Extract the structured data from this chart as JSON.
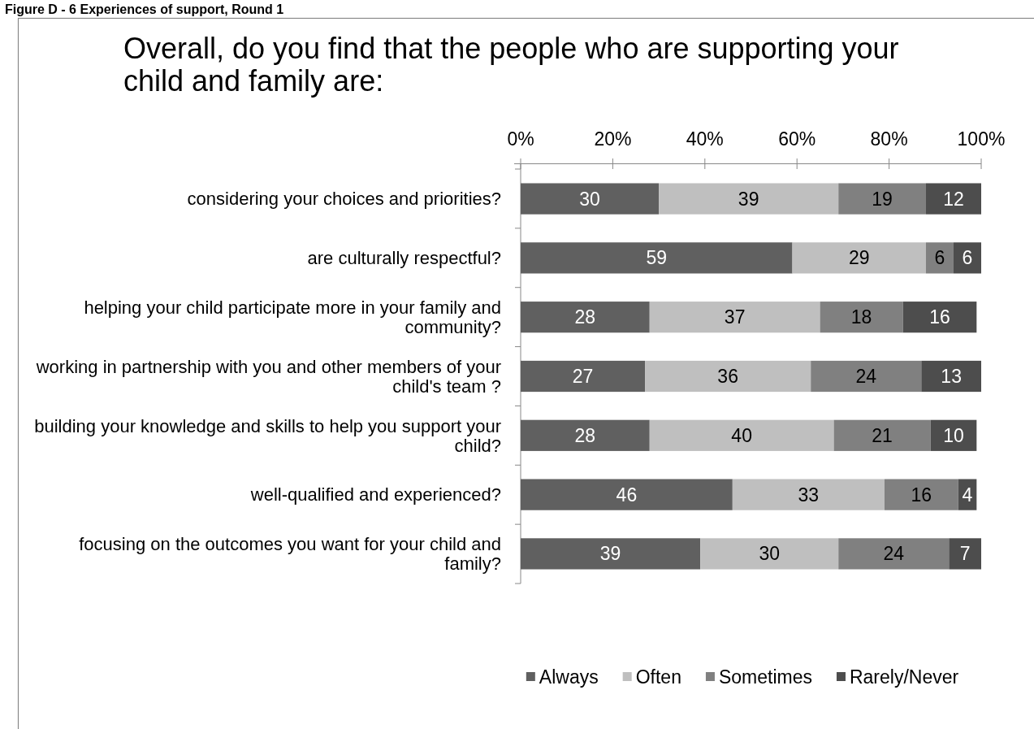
{
  "chart_data": {
    "type": "bar",
    "orientation": "horizontal",
    "stacked": true,
    "title": "Overall, do you find that the people who are supporting your child and family are:",
    "annotations": [
      "Figure D - 6 Experiences of support, Round 1"
    ],
    "categories": [
      "considering your choices and priorities?",
      "are culturally respectful?",
      "helping your child participate more in your family and community?",
      "working in partnership with you and other members of your child's team ?",
      "building your knowledge and skills to help you support your child?",
      "well-qualified and experienced?",
      "focusing on the outcomes you want for your child and family?"
    ],
    "series": [
      {
        "name": "Always",
        "color": "#606060",
        "values": [
          30,
          59,
          28,
          27,
          28,
          46,
          39
        ]
      },
      {
        "name": "Often",
        "color": "#bfbfbf",
        "values": [
          39,
          29,
          37,
          36,
          40,
          33,
          30
        ]
      },
      {
        "name": "Sometimes",
        "color": "#808080",
        "values": [
          19,
          6,
          18,
          24,
          21,
          16,
          24
        ]
      },
      {
        "name": "Rarely/Never",
        "color": "#4d4d4d",
        "values": [
          12,
          6,
          16,
          13,
          10,
          4,
          7
        ]
      }
    ],
    "xlim": [
      0,
      100
    ],
    "xticks": [
      {
        "value": 0,
        "label": "0%"
      },
      {
        "value": 20,
        "label": "20%"
      },
      {
        "value": 40,
        "label": "40%"
      },
      {
        "value": 60,
        "label": "60%"
      },
      {
        "value": 80,
        "label": "80%"
      },
      {
        "value": 100,
        "label": "100%"
      }
    ],
    "data_labels": true,
    "grid": false,
    "legend": "bottom"
  }
}
